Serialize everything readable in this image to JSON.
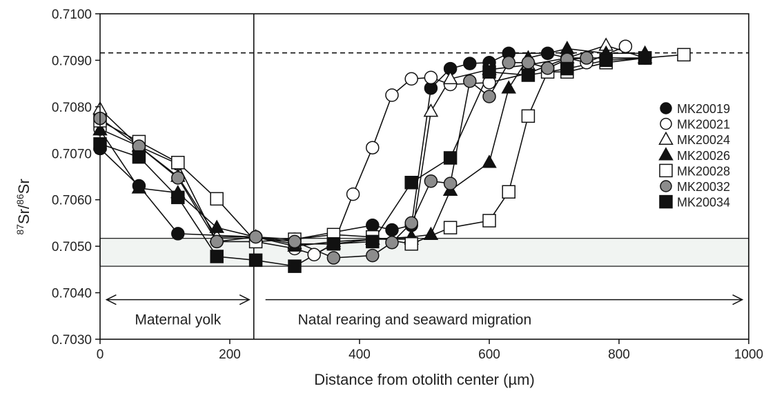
{
  "chart_data": {
    "type": "line",
    "xlabel": "Distance from otolith center (µm)",
    "ylabel_parts": {
      "sup1": "87",
      "base1": "Sr/",
      "sup2": "86",
      "base2": "Sr"
    },
    "xlim": [
      0,
      1000
    ],
    "ylim": [
      0.703,
      0.71
    ],
    "x_ticks": [
      0,
      200,
      400,
      600,
      800,
      1000
    ],
    "x_tick_labels": [
      "0",
      "200",
      "400",
      "600",
      "800",
      "1000"
    ],
    "y_ticks": [
      0.703,
      0.704,
      0.705,
      0.706,
      0.707,
      0.708,
      0.709,
      0.71
    ],
    "y_tick_labels": [
      "0.7030",
      "0.7040",
      "0.7050",
      "0.7060",
      "0.7070",
      "0.7080",
      "0.7090",
      "0.7100"
    ],
    "grid": false,
    "legend_position": "right",
    "reference_line": {
      "y": 0.70916,
      "style": "dashed"
    },
    "shaded_band": {
      "y_from": 0.70457,
      "y_to": 0.70517
    },
    "vertical_line": {
      "x": 237
    },
    "annotations": [
      {
        "text": "Maternal yolk",
        "x_from": 10,
        "x_to": 230,
        "y": 0.70385
      },
      {
        "text": "Natal rearing and seaward migration",
        "x_from": 255,
        "x_to": 990,
        "y": 0.70385
      }
    ],
    "series": [
      {
        "name": "MK20019",
        "marker": "circle",
        "fill": "#111111",
        "x": [
          0,
          60,
          120,
          240,
          300,
          420,
          450,
          480,
          510,
          540,
          570,
          600,
          630,
          690,
          720,
          780,
          840
        ],
        "y": [
          0.7071,
          0.7063,
          0.70527,
          0.7052,
          0.70515,
          0.70545,
          0.70535,
          0.70545,
          0.7084,
          0.70882,
          0.70893,
          0.70895,
          0.70915,
          0.70915,
          0.70905,
          0.70905,
          0.70905
        ]
      },
      {
        "name": "MK20021",
        "marker": "circle",
        "fill": "#ffffff",
        "x": [
          0,
          60,
          120,
          180,
          240,
          300,
          330,
          360,
          390,
          420,
          450,
          480,
          510,
          540,
          600,
          660,
          720,
          750,
          810
        ],
        "y": [
          0.70752,
          0.70715,
          0.70677,
          0.7051,
          0.7051,
          0.70495,
          0.70482,
          0.70505,
          0.70612,
          0.70712,
          0.70825,
          0.7086,
          0.70863,
          0.70848,
          0.70852,
          0.70872,
          0.70905,
          0.70895,
          0.7093
        ]
      },
      {
        "name": "MK20024",
        "marker": "triangle",
        "fill": "#ffffff",
        "x": [
          0,
          60,
          120,
          180,
          240,
          300,
          360,
          420,
          480,
          510,
          540,
          600,
          660,
          720,
          780,
          840
        ],
        "y": [
          0.70795,
          0.70715,
          0.7065,
          0.7052,
          0.7052,
          0.70505,
          0.70505,
          0.70515,
          0.70515,
          0.7079,
          0.7086,
          0.7088,
          0.7089,
          0.70905,
          0.70932,
          0.70905
        ]
      },
      {
        "name": "MK20026",
        "marker": "triangle",
        "fill": "#111111",
        "x": [
          0,
          60,
          120,
          180,
          240,
          300,
          360,
          420,
          480,
          510,
          540,
          600,
          630,
          660,
          720,
          780,
          840
        ],
        "y": [
          0.7075,
          0.70625,
          0.70615,
          0.7054,
          0.7052,
          0.705,
          0.7051,
          0.70515,
          0.7052,
          0.70525,
          0.7062,
          0.7068,
          0.7084,
          0.70905,
          0.70925,
          0.70915,
          0.70915
        ]
      },
      {
        "name": "MK20028",
        "marker": "square",
        "fill": "#ffffff",
        "x": [
          0,
          60,
          120,
          180,
          240,
          300,
          360,
          420,
          480,
          540,
          600,
          630,
          660,
          690,
          720,
          780,
          840,
          900
        ],
        "y": [
          0.7077,
          0.70725,
          0.7068,
          0.70602,
          0.7051,
          0.70515,
          0.70525,
          0.7052,
          0.70505,
          0.7054,
          0.70555,
          0.70617,
          0.7078,
          0.70875,
          0.70875,
          0.70895,
          0.70905,
          0.70912
        ]
      },
      {
        "name": "MK20032",
        "marker": "circle",
        "fill": "#8c8c8c",
        "x": [
          0,
          60,
          120,
          180,
          240,
          300,
          360,
          420,
          450,
          480,
          510,
          540,
          570,
          600,
          630,
          660,
          690,
          720,
          750
        ],
        "y": [
          0.70775,
          0.70715,
          0.70647,
          0.7051,
          0.7052,
          0.7051,
          0.70475,
          0.7048,
          0.70508,
          0.7055,
          0.7064,
          0.70635,
          0.70855,
          0.70822,
          0.70895,
          0.70895,
          0.70883,
          0.70902,
          0.70905
        ]
      },
      {
        "name": "MK20034",
        "marker": "square",
        "fill": "#111111",
        "x": [
          0,
          60,
          120,
          180,
          240,
          300,
          360,
          420,
          480,
          540,
          600,
          660,
          720,
          780,
          840
        ],
        "y": [
          0.7072,
          0.70692,
          0.70605,
          0.70478,
          0.7047,
          0.70457,
          0.70505,
          0.7051,
          0.70637,
          0.7069,
          0.70875,
          0.70868,
          0.70882,
          0.709,
          0.70905
        ]
      }
    ]
  }
}
